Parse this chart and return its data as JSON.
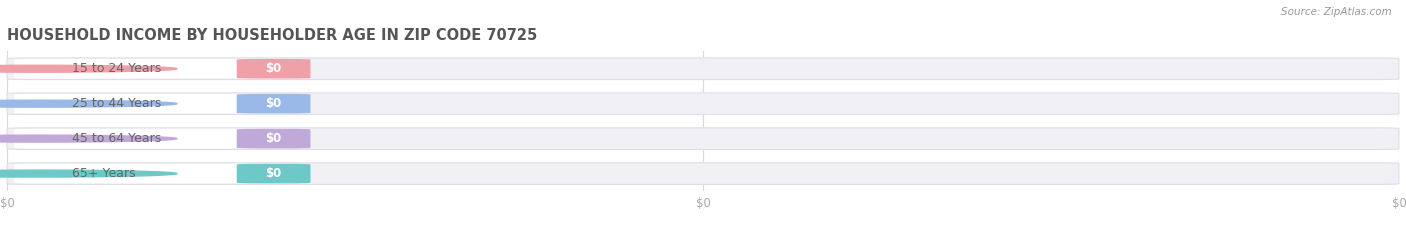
{
  "title": "HOUSEHOLD INCOME BY HOUSEHOLDER AGE IN ZIP CODE 70725",
  "source": "Source: ZipAtlas.com",
  "categories": [
    "15 to 24 Years",
    "25 to 44 Years",
    "45 to 64 Years",
    "65+ Years"
  ],
  "values": [
    0,
    0,
    0,
    0
  ],
  "value_labels": [
    "$0",
    "$0",
    "$0",
    "$0"
  ],
  "bar_colors": [
    "#f0a0a8",
    "#9ab8e8",
    "#c0a8d8",
    "#6ec8c8"
  ],
  "bg_color": "#ffffff",
  "bar_bg_color": "#f0f0f5",
  "bar_border_color": "#e0dde8",
  "tick_label_color": "#aaaaaa",
  "title_color": "#555555",
  "source_color": "#999999",
  "label_text_color": "#666666",
  "value_text_color": "#ffffff",
  "xtick_labels": [
    "$0",
    "$0",
    "$0"
  ],
  "xtick_positions": [
    0.0,
    0.5,
    1.0
  ],
  "figsize": [
    14.06,
    2.33
  ],
  "dpi": 100
}
